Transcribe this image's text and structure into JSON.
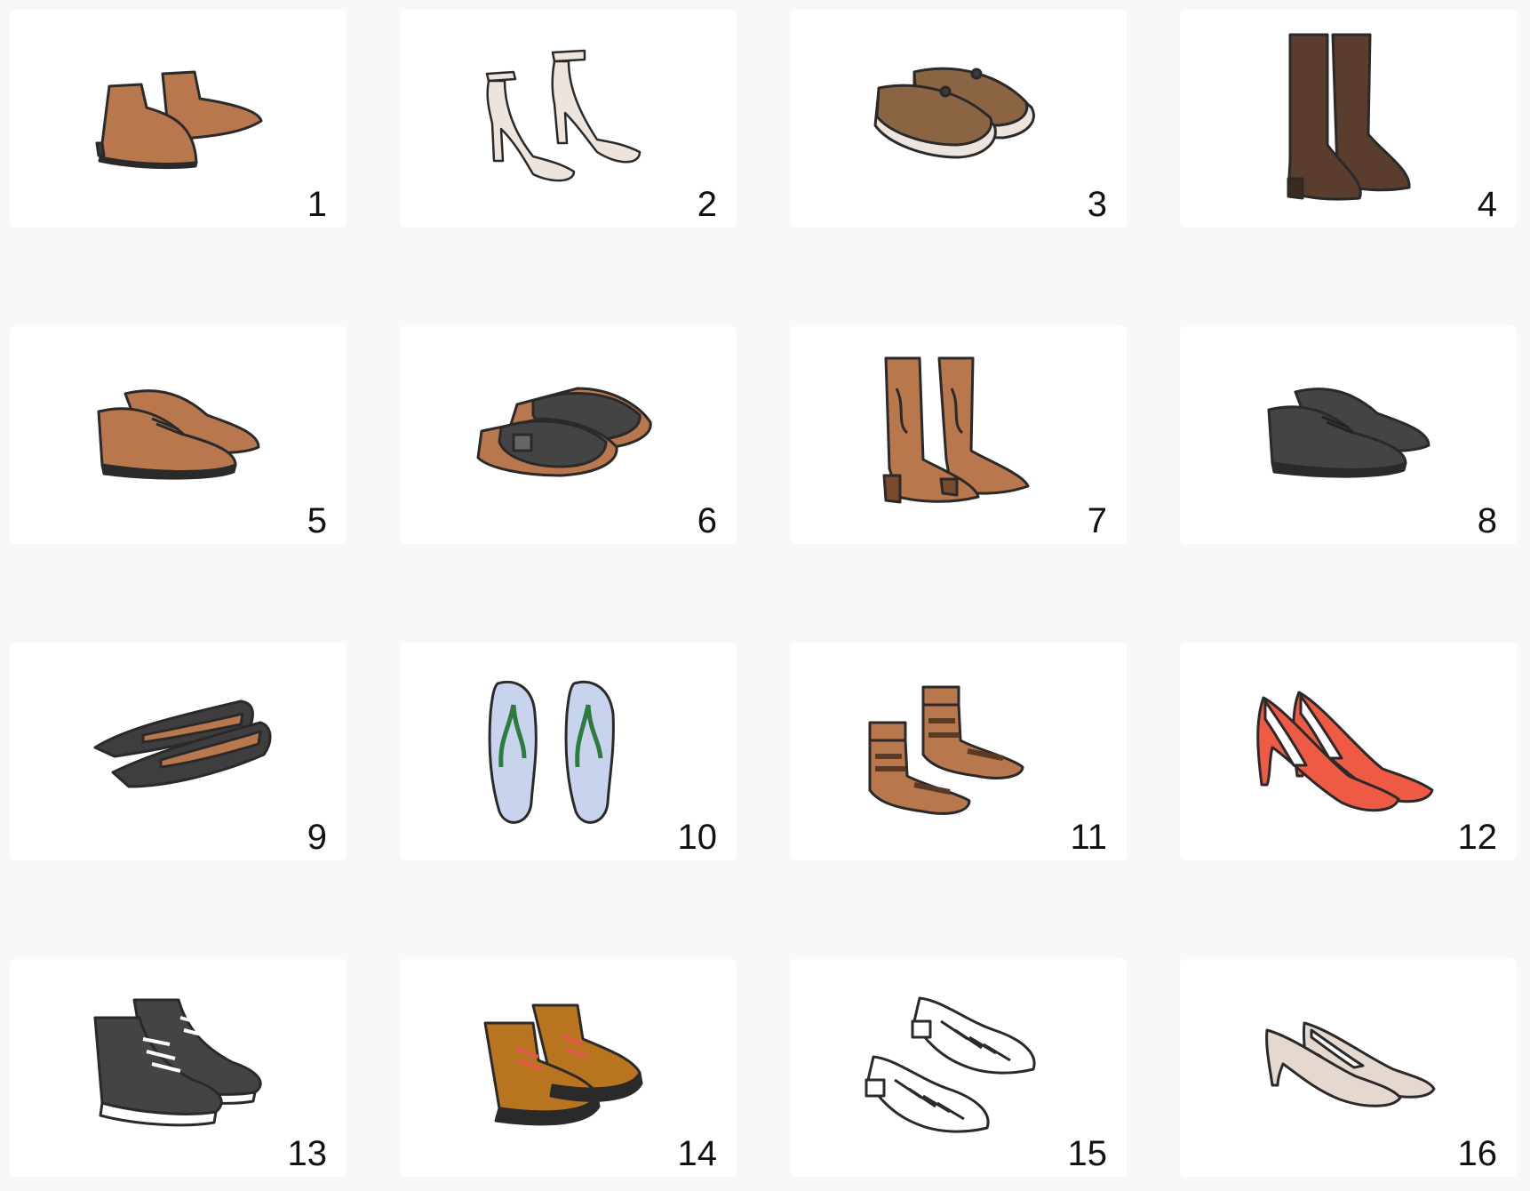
{
  "items": [
    {
      "number": "1",
      "icon": "ankle-boots-icon",
      "color": "#b9774e"
    },
    {
      "number": "2",
      "icon": "strappy-heels-icon",
      "color": "#ede4dd"
    },
    {
      "number": "3",
      "icon": "boat-shoes-icon",
      "color": "#8b6443"
    },
    {
      "number": "4",
      "icon": "tall-boots-icon",
      "color": "#5a3d2c"
    },
    {
      "number": "5",
      "icon": "brogues-icon",
      "color": "#b9774e"
    },
    {
      "number": "6",
      "icon": "clogs-icon",
      "color": "#444444"
    },
    {
      "number": "7",
      "icon": "cowboy-boots-icon",
      "color": "#b9774e"
    },
    {
      "number": "8",
      "icon": "oxford-shoes-icon",
      "color": "#444444"
    },
    {
      "number": "9",
      "icon": "ballet-flats-icon",
      "color": "#3e3e3e"
    },
    {
      "number": "10",
      "icon": "flip-flops-icon",
      "color": "#c8d4ee"
    },
    {
      "number": "11",
      "icon": "gladiator-sandals-icon",
      "color": "#b9774e"
    },
    {
      "number": "12",
      "icon": "red-pumps-icon",
      "color": "#ef5a45"
    },
    {
      "number": "13",
      "icon": "high-top-sneakers-icon",
      "color": "#444444"
    },
    {
      "number": "14",
      "icon": "hiking-boots-icon",
      "color": "#b8741f"
    },
    {
      "number": "15",
      "icon": "fisherman-sandals-icon",
      "color": "#ffffff"
    },
    {
      "number": "16",
      "icon": "kitten-heels-icon",
      "color": "#e5d8cf"
    }
  ]
}
